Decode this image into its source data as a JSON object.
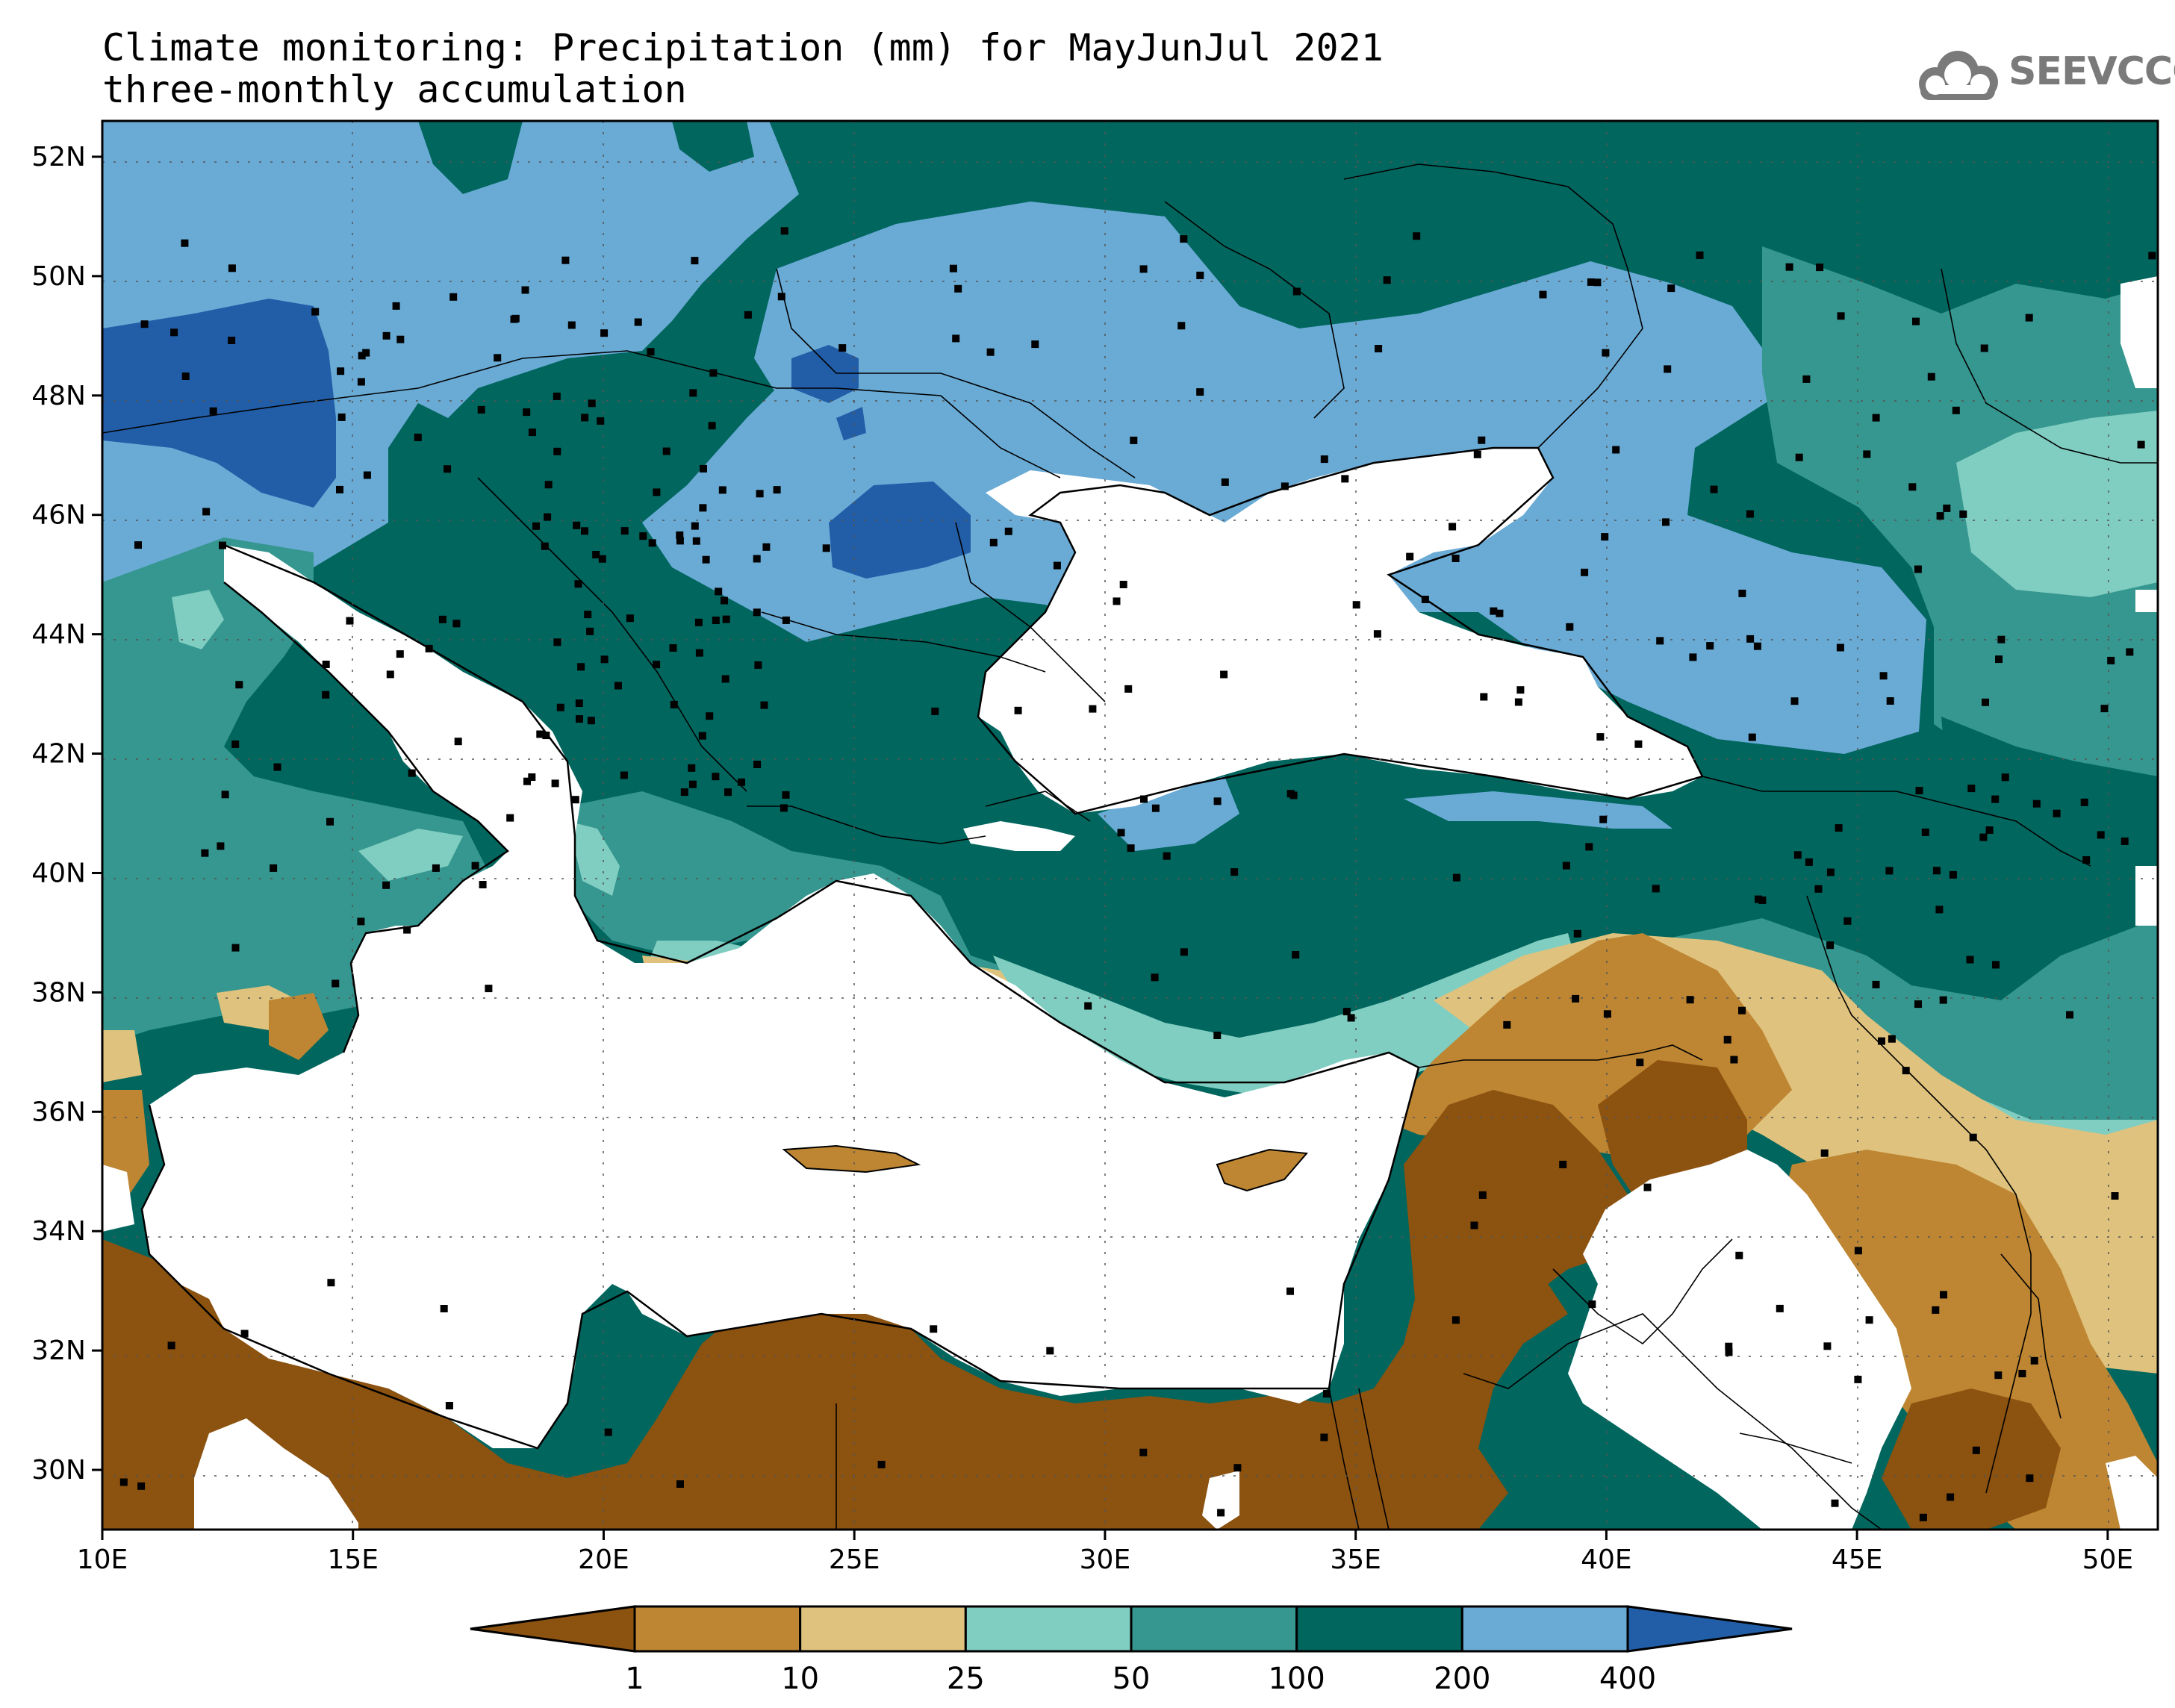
{
  "title": {
    "line1": "Climate monitoring: Precipitation (mm) for MayJunJul 2021",
    "line2": "three-monthly accumulation"
  },
  "logo": {
    "text": "SEEVCCC",
    "icon": "cloud-icon"
  },
  "map": {
    "lon_range": [
      10,
      51
    ],
    "lat_range": [
      29,
      52.6
    ],
    "lon_ticks": [
      "10E",
      "15E",
      "20E",
      "25E",
      "30E",
      "35E",
      "40E",
      "45E",
      "50E"
    ],
    "lat_ticks": [
      "30N",
      "32N",
      "34N",
      "36N",
      "38N",
      "40N",
      "42N",
      "44N",
      "46N",
      "48N",
      "50N",
      "52N"
    ],
    "gridlines": "dotted"
  },
  "colorbar": {
    "labels": [
      "1",
      "10",
      "25",
      "50",
      "100",
      "200",
      "400"
    ],
    "colors": [
      "#8c5210",
      "#be8633",
      "#dfc27d",
      "#80cdc1",
      "#35978f",
      "#01665e",
      "#6aabd6",
      "#225ea8"
    ]
  }
}
